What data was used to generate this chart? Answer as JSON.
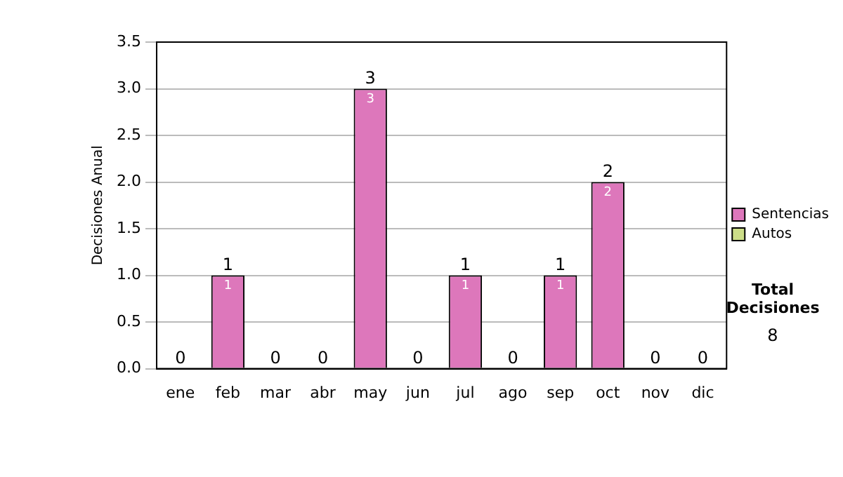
{
  "chart_data": {
    "type": "bar",
    "ylabel": "Decisiones Anual",
    "categories": [
      "ene",
      "feb",
      "mar",
      "abr",
      "may",
      "jun",
      "jul",
      "ago",
      "sep",
      "oct",
      "nov",
      "dic"
    ],
    "series": [
      {
        "name": "Sentencias",
        "color": "#dd77bb",
        "values": [
          0,
          1,
          0,
          0,
          3,
          0,
          1,
          0,
          1,
          2,
          0,
          0
        ],
        "value_labels": [
          null,
          "1",
          null,
          null,
          "3",
          null,
          "1",
          null,
          "1",
          "2",
          null,
          null
        ]
      },
      {
        "name": "Autos",
        "color": "#ccdd88",
        "values": [
          0,
          0,
          0,
          0,
          0,
          0,
          0,
          0,
          0,
          0,
          0,
          0
        ]
      }
    ],
    "stacked": true,
    "totals": [
      "0",
      "1",
      "0",
      "0",
      "3",
      "0",
      "1",
      "0",
      "1",
      "2",
      "0",
      "0"
    ],
    "ylim": [
      0,
      3.5
    ],
    "yticks": [
      {
        "value": 0,
        "label": "0.0"
      },
      {
        "value": 0.5,
        "label": "0.5"
      },
      {
        "value": 1,
        "label": "1.0"
      },
      {
        "value": 1.5,
        "label": "1.5"
      },
      {
        "value": 2,
        "label": "2.0"
      },
      {
        "value": 2.5,
        "label": "2.5"
      },
      {
        "value": 3,
        "label": "3.0"
      },
      {
        "value": 3.5,
        "label": "3.5"
      }
    ],
    "grid": "y",
    "legend": "right",
    "annotations": [
      "Total Decisiones",
      "8"
    ]
  }
}
